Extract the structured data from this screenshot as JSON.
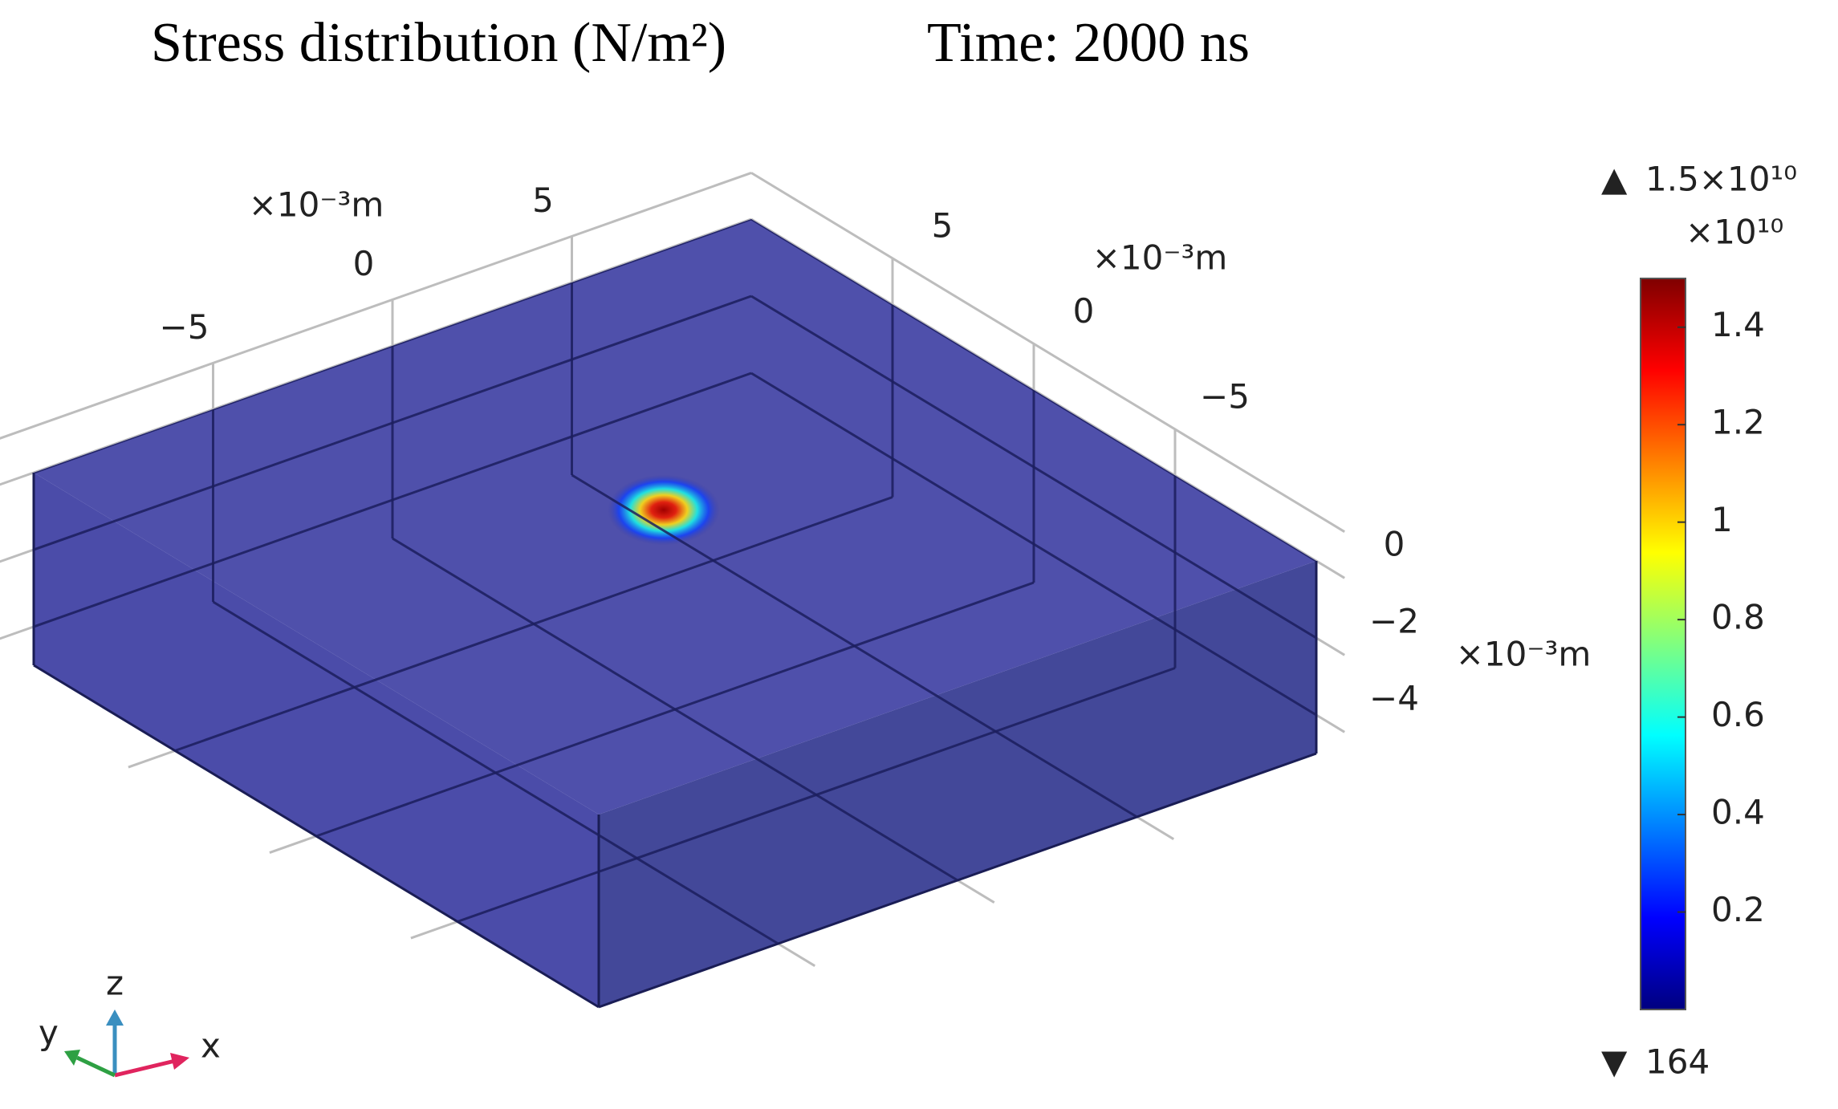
{
  "chart_data": {
    "type": "surface3d",
    "title": "Stress distribution (N/m²)",
    "subtitle": "Time: 2000 ns",
    "box_color": "#3c3da2",
    "x_axis": {
      "label": "×10⁻³m",
      "lim": [
        -10,
        10
      ],
      "ticks": [
        {
          "value": -5,
          "label": "−5"
        },
        0,
        5
      ]
    },
    "y_axis": {
      "label": "×10⁻³m",
      "lim": [
        -10,
        10
      ],
      "ticks": [
        5,
        0,
        {
          "value": -5,
          "label": "−5"
        }
      ]
    },
    "z_axis": {
      "label": "×10⁻³m",
      "lim": [
        -5,
        0
      ],
      "ticks": [
        0,
        {
          "value": -2,
          "label": "−2"
        },
        {
          "value": -4,
          "label": "−4"
        }
      ]
    },
    "colorbar": {
      "colormap": "jet",
      "max": {
        "value": 15000000000,
        "label": "1.5×10¹⁰"
      },
      "min": 164,
      "multiplier": "×10¹⁰",
      "lim": [
        0,
        1.5
      ],
      "ticks": [
        0.2,
        0.4,
        0.6,
        0.8,
        1,
        1.2,
        1.4
      ]
    },
    "triad": {
      "x": "x",
      "y": "y",
      "z": "z"
    }
  }
}
